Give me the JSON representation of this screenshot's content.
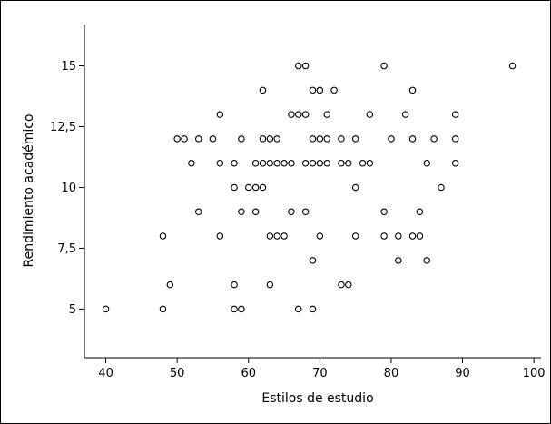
{
  "chart_data": {
    "type": "scatter",
    "title": "",
    "xlabel": "Estilos de estudio",
    "ylabel": "Rendimiento académico",
    "xlim": [
      37,
      101
    ],
    "ylim": [
      3,
      16.7
    ],
    "xticks": [
      40,
      50,
      60,
      70,
      80,
      90,
      100
    ],
    "xtick_labels": [
      "40",
      "50",
      "60",
      "70",
      "80",
      "90",
      "100"
    ],
    "yticks": [
      5,
      7.5,
      10,
      12.5,
      15
    ],
    "ytick_labels": [
      "5",
      "7,5",
      "10",
      "12,5",
      "15"
    ],
    "grid": false,
    "points": [
      [
        40,
        5
      ],
      [
        48,
        5
      ],
      [
        48,
        8
      ],
      [
        49,
        6
      ],
      [
        50,
        12
      ],
      [
        51,
        12
      ],
      [
        52,
        11
      ],
      [
        53,
        12
      ],
      [
        53,
        9
      ],
      [
        55,
        12
      ],
      [
        56,
        13
      ],
      [
        56,
        11
      ],
      [
        56,
        8
      ],
      [
        58,
        11
      ],
      [
        58,
        10
      ],
      [
        58,
        6
      ],
      [
        58,
        5
      ],
      [
        59,
        12
      ],
      [
        59,
        9
      ],
      [
        59,
        5
      ],
      [
        60,
        10
      ],
      [
        61,
        11
      ],
      [
        61,
        10
      ],
      [
        61,
        9
      ],
      [
        62,
        14
      ],
      [
        62,
        12
      ],
      [
        62,
        11
      ],
      [
        62,
        10
      ],
      [
        63,
        12
      ],
      [
        63,
        11
      ],
      [
        63,
        8
      ],
      [
        63,
        6
      ],
      [
        64,
        12
      ],
      [
        64,
        11
      ],
      [
        64,
        8
      ],
      [
        65,
        11
      ],
      [
        65,
        8
      ],
      [
        66,
        13
      ],
      [
        66,
        11
      ],
      [
        66,
        9
      ],
      [
        67,
        15
      ],
      [
        67,
        13
      ],
      [
        67,
        5
      ],
      [
        68,
        15
      ],
      [
        68,
        13
      ],
      [
        68,
        11
      ],
      [
        68,
        9
      ],
      [
        69,
        14
      ],
      [
        69,
        12
      ],
      [
        69,
        11
      ],
      [
        69,
        7
      ],
      [
        69,
        5
      ],
      [
        70,
        14
      ],
      [
        70,
        12
      ],
      [
        70,
        11
      ],
      [
        70,
        8
      ],
      [
        71,
        13
      ],
      [
        71,
        12
      ],
      [
        71,
        11
      ],
      [
        72,
        14
      ],
      [
        73,
        12
      ],
      [
        73,
        11
      ],
      [
        73,
        6
      ],
      [
        74,
        11
      ],
      [
        74,
        6
      ],
      [
        75,
        12
      ],
      [
        75,
        10
      ],
      [
        75,
        8
      ],
      [
        76,
        11
      ],
      [
        77,
        13
      ],
      [
        77,
        11
      ],
      [
        79,
        15
      ],
      [
        79,
        9
      ],
      [
        79,
        8
      ],
      [
        80,
        12
      ],
      [
        81,
        8
      ],
      [
        81,
        7
      ],
      [
        82,
        13
      ],
      [
        83,
        14
      ],
      [
        83,
        12
      ],
      [
        83,
        8
      ],
      [
        84,
        9
      ],
      [
        84,
        8
      ],
      [
        85,
        11
      ],
      [
        85,
        7
      ],
      [
        86,
        12
      ],
      [
        87,
        10
      ],
      [
        89,
        13
      ],
      [
        89,
        12
      ],
      [
        89,
        11
      ],
      [
        97,
        15
      ]
    ]
  }
}
